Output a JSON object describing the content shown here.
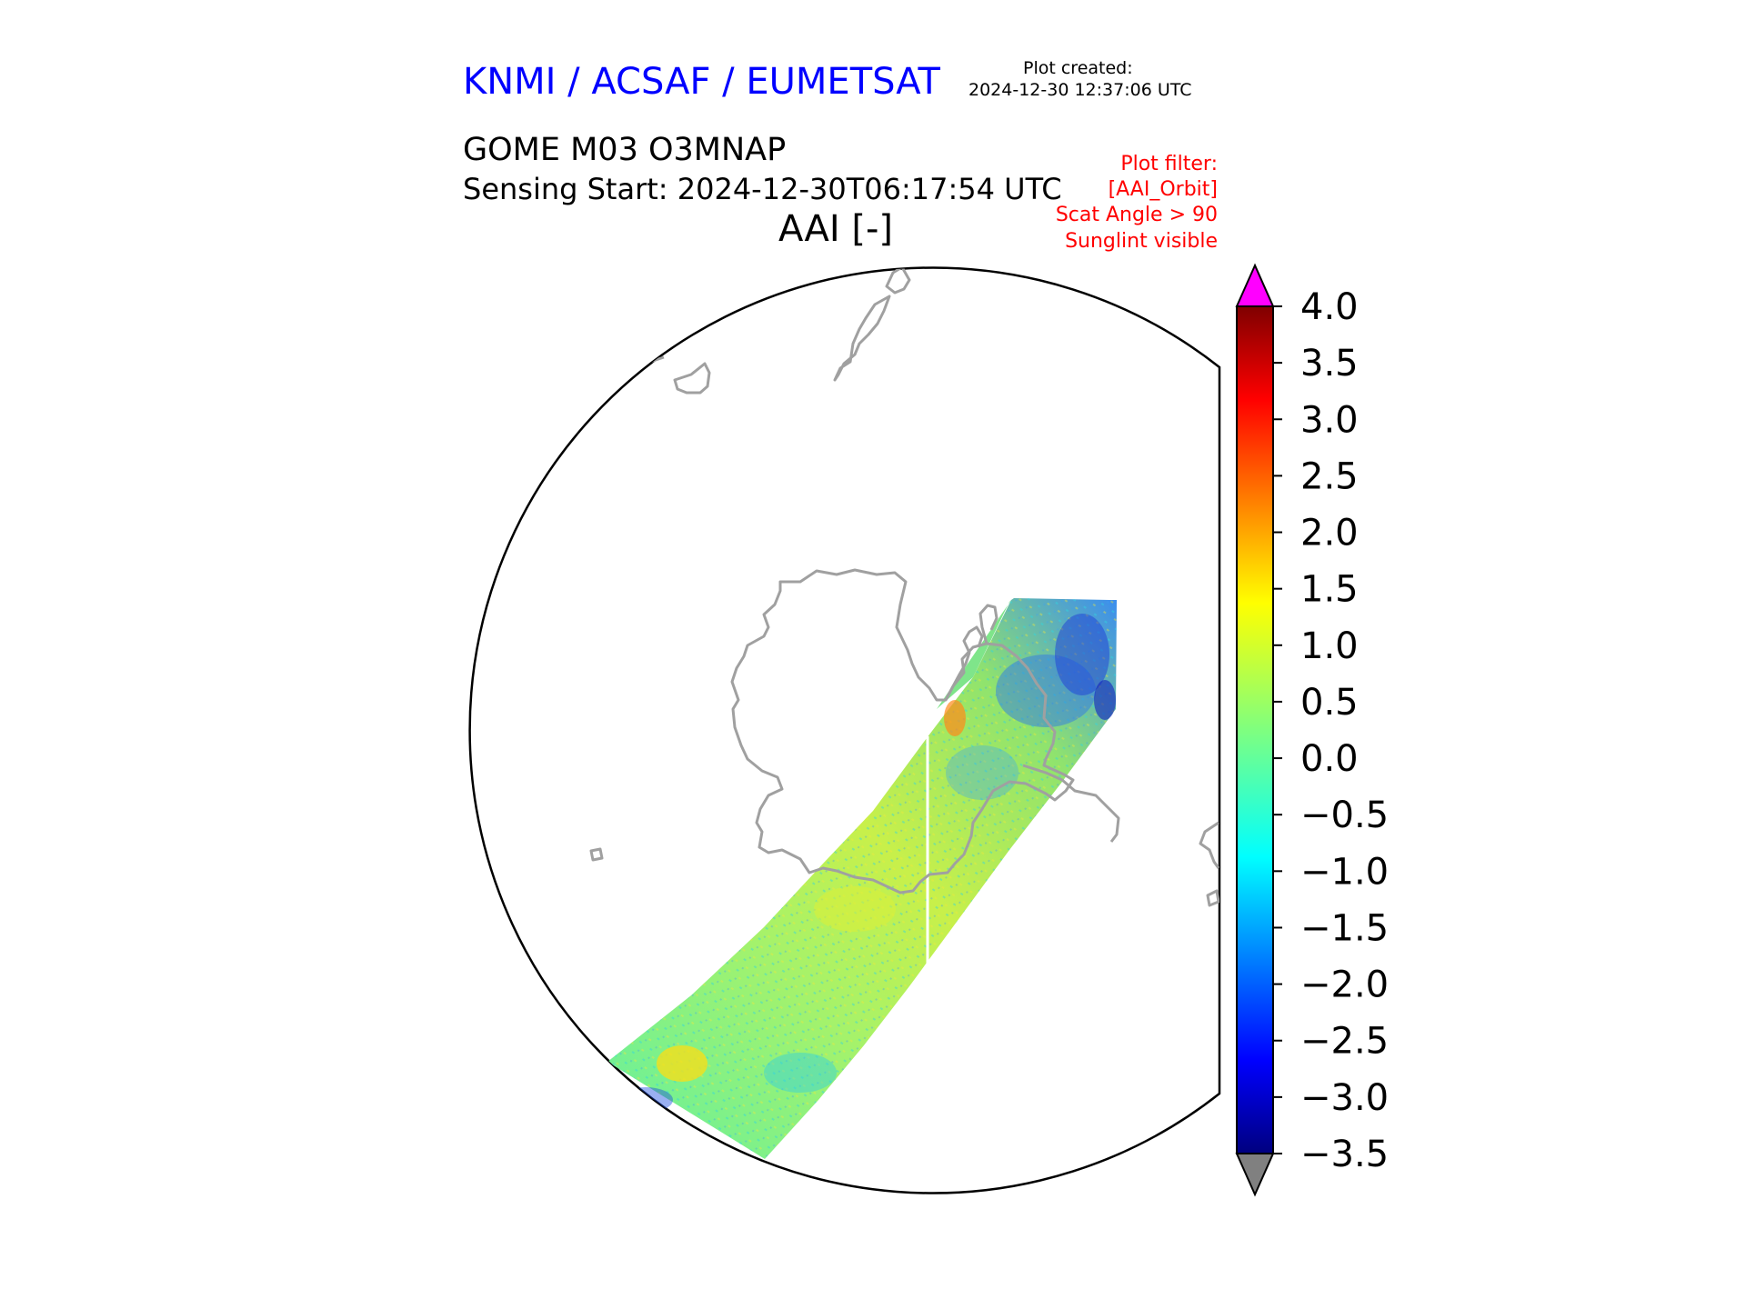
{
  "header": {
    "provider": "KNMI / ACSAF / EUMETSAT",
    "plot_created_label": "Plot created:",
    "plot_created_value": "2024-12-30 12:37:06 UTC",
    "product": "GOME M03 O3MNAP",
    "sensing_start": "Sensing Start: 2024-12-30T06:17:54 UTC",
    "quantity": "AAI [-]"
  },
  "plot_filter": {
    "title": "Plot filter:",
    "orbit": "[AAI_Orbit]",
    "scat_angle": "Scat Angle > 90",
    "sunglint": "Sunglint visible"
  },
  "map": {
    "projection": "south polar orthographic",
    "coastline_color": "#a0a0a0",
    "swath": "single GOME orbit swath crossing Antarctica"
  },
  "colorbar": {
    "colormap": "jet",
    "min": -3.5,
    "max": 4.0,
    "ticks": [
      "4.0",
      "3.5",
      "3.0",
      "2.5",
      "2.0",
      "1.5",
      "1.0",
      "0.5",
      "0.0",
      "−0.5",
      "−1.0",
      "−1.5",
      "−2.0",
      "−2.5",
      "−3.0",
      "−3.5"
    ],
    "over_color": "#ff00ff",
    "under_color": "#808080"
  }
}
